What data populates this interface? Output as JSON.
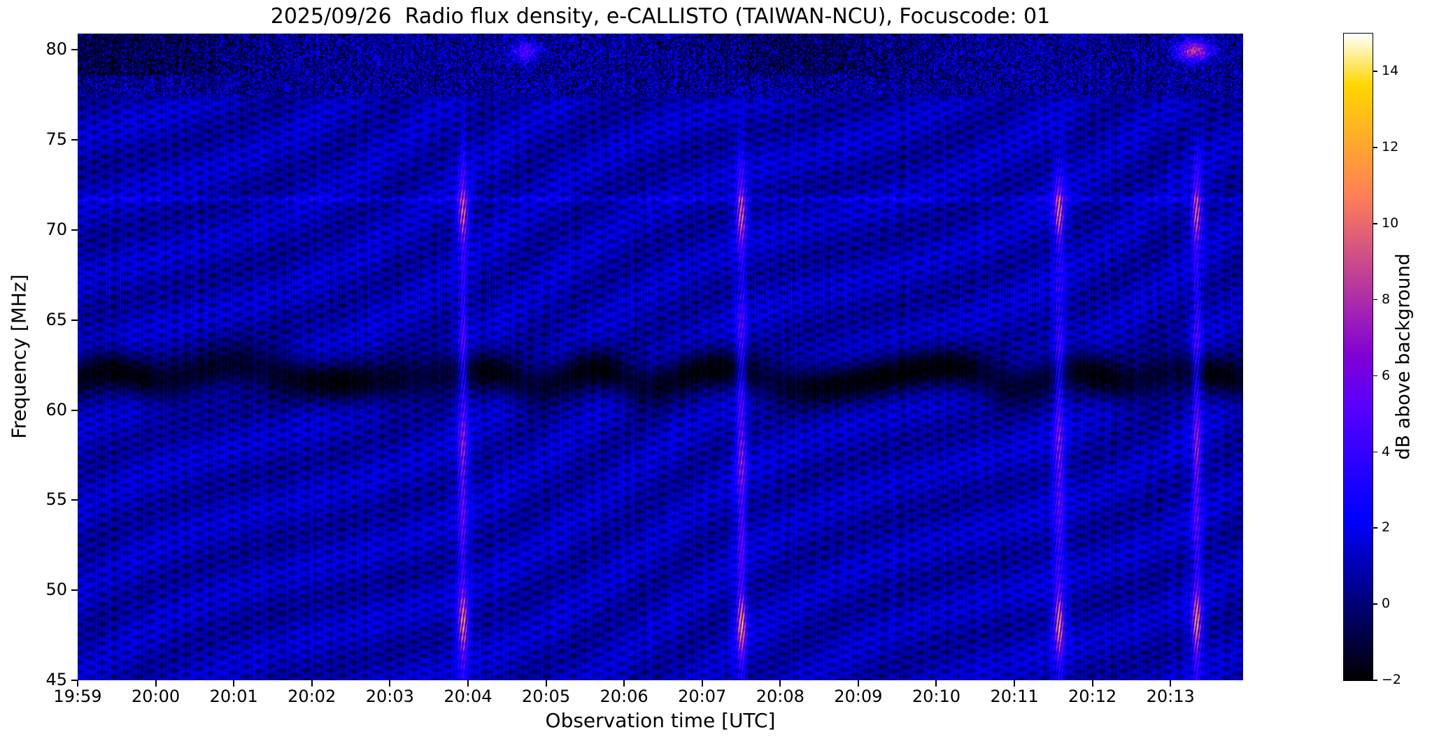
{
  "chart_data": {
    "type": "heatmap",
    "title": "2025/09/26  Radio flux density, e-CALLISTO (TAIWAN-NCU), Focuscode: 01",
    "x_axis": {
      "label": "Observation time [UTC]",
      "span_minutes": 14.93,
      "ticks": [
        {
          "minute": 0,
          "label": "19:59"
        },
        {
          "minute": 1,
          "label": "20:00"
        },
        {
          "minute": 2,
          "label": "20:01"
        },
        {
          "minute": 3,
          "label": "20:02"
        },
        {
          "minute": 4,
          "label": "20:03"
        },
        {
          "minute": 5,
          "label": "20:04"
        },
        {
          "minute": 6,
          "label": "20:05"
        },
        {
          "minute": 7,
          "label": "20:06"
        },
        {
          "minute": 8,
          "label": "20:07"
        },
        {
          "minute": 9,
          "label": "20:08"
        },
        {
          "minute": 10,
          "label": "20:09"
        },
        {
          "minute": 11,
          "label": "20:10"
        },
        {
          "minute": 12,
          "label": "20:11"
        },
        {
          "minute": 13,
          "label": "20:12"
        },
        {
          "minute": 14,
          "label": "20:13"
        }
      ]
    },
    "y_axis": {
      "label": "Frequency [MHz]",
      "ticks": [
        {
          "v": 45,
          "label": "45"
        },
        {
          "v": 50,
          "label": "50"
        },
        {
          "v": 55,
          "label": "55"
        },
        {
          "v": 60,
          "label": "60"
        },
        {
          "v": 65,
          "label": "65"
        },
        {
          "v": 70,
          "label": "70"
        },
        {
          "v": 75,
          "label": "75"
        },
        {
          "v": 80,
          "label": "80"
        }
      ]
    },
    "freq_range": [
      45,
      80.9
    ],
    "colormap": "gnuplot2",
    "colorbar": {
      "label": "dB above background",
      "min": -2,
      "max": 15,
      "ticks": [
        {
          "v": 14,
          "label": "14"
        },
        {
          "v": 12,
          "label": "12"
        },
        {
          "v": 10,
          "label": "10"
        },
        {
          "v": 8,
          "label": "8"
        },
        {
          "v": 6,
          "label": "6"
        },
        {
          "v": 4,
          "label": "4"
        },
        {
          "v": 2,
          "label": "2"
        },
        {
          "v": 0,
          "label": "0"
        },
        {
          "v": -2,
          "label": "−2"
        }
      ]
    },
    "features": {
      "background_db": 0.55,
      "fringe_amp_db": 0.95,
      "slow_amp_db": 0.5,
      "pixel_noise_db": 0.8,
      "dark_band": {
        "freq_mhz": 61.9,
        "sigma_mhz": 0.85,
        "depth_db": 2.9
      },
      "spectral_line": {
        "freq_mhz": 71.73,
        "sigma_mhz": 0.115,
        "strength_db": 1.4
      },
      "comb_band": {
        "freq_mhz": 66.6,
        "sigma_mhz": 1.15,
        "strength_db": 0.55
      },
      "noise_band_start_mhz": 77.1,
      "dark_patches": [
        {
          "t_s": 40,
          "sigma_s": 55,
          "depth_db": 1.4
        },
        {
          "t_s": 560,
          "sigma_s": 45,
          "depth_db": 1.0
        }
      ],
      "top_streaks": [
        {
          "t_s": 344,
          "freq_mhz": 79.9,
          "amp_db": 4.5,
          "sigma_s": 7
        },
        {
          "t_s": 858,
          "freq_mhz": 79.95,
          "amp_db": 7.5,
          "sigma_s": 9
        }
      ],
      "bursts": {
        "times_utc": [
          "20:03:56",
          "20:07:30",
          "20:11:34",
          "20:13:20"
        ],
        "times_s": [
          296,
          510,
          754,
          860
        ],
        "sigma_s": 2.4,
        "base_db": 2.2,
        "fade_start_mhz": 73.5,
        "fade_end_mhz": 76.8,
        "blobs": [
          {
            "freq_mhz": 48.2,
            "sigma_mhz": 1.1,
            "amp_db": 7.0
          },
          {
            "freq_mhz": 53.0,
            "sigma_mhz": 1.5,
            "amp_db": 1.8
          },
          {
            "freq_mhz": 57.5,
            "sigma_mhz": 1.7,
            "amp_db": 3.2
          },
          {
            "freq_mhz": 63.0,
            "sigma_mhz": 2.0,
            "amp_db": 2.0
          },
          {
            "freq_mhz": 70.9,
            "sigma_mhz": 1.0,
            "amp_db": 6.0
          }
        ]
      }
    }
  }
}
